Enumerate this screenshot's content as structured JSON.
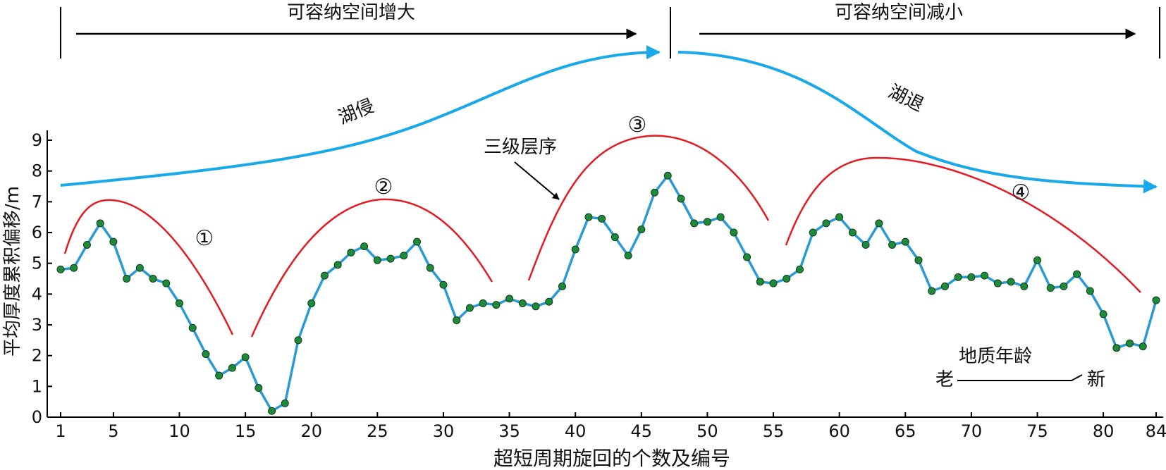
{
  "chart_data": {
    "type": "line",
    "xlabel": "超短周期旋回的个数及编号",
    "ylabel": "平均厚度累积偏移/m",
    "xlim": [
      1,
      84
    ],
    "ylim": [
      0,
      9
    ],
    "x_ticks": [
      1,
      5,
      10,
      15,
      20,
      25,
      30,
      35,
      40,
      45,
      50,
      55,
      60,
      65,
      70,
      75,
      80,
      84
    ],
    "y_ticks": [
      0,
      1,
      2,
      3,
      4,
      5,
      6,
      7,
      8,
      9
    ],
    "colors": {
      "line": "#2a9ad6",
      "marker": "#1f8a3a",
      "curve": "#e31b23",
      "trend": "#1aa9e8",
      "axis": "#000000"
    },
    "series": [
      {
        "x": [
          1,
          2,
          3,
          4,
          5,
          6,
          7,
          8,
          9,
          10,
          11,
          12,
          13,
          14,
          15,
          16,
          17,
          18,
          19,
          20,
          21,
          22,
          23,
          24,
          25,
          26,
          27,
          28,
          29,
          30,
          31,
          32,
          33,
          34,
          35,
          36,
          37,
          38,
          39,
          40,
          41,
          42,
          43,
          44,
          45,
          46,
          47,
          48,
          49,
          50,
          51,
          52,
          53,
          54,
          55,
          56,
          57,
          58,
          59,
          60,
          61,
          62,
          63,
          64,
          65,
          66,
          67,
          68,
          69,
          70,
          71,
          72,
          73,
          74,
          75,
          76,
          77,
          78,
          79,
          80,
          81,
          82,
          83,
          84
        ],
        "values": [
          4.8,
          4.85,
          5.6,
          6.3,
          5.7,
          4.5,
          4.85,
          4.5,
          4.35,
          3.7,
          2.9,
          2.05,
          1.35,
          1.6,
          1.95,
          0.95,
          0.2,
          0.45,
          2.5,
          3.7,
          4.6,
          4.95,
          5.35,
          5.55,
          5.1,
          5.15,
          5.25,
          5.7,
          4.85,
          4.3,
          3.15,
          3.55,
          3.7,
          3.65,
          3.85,
          3.7,
          3.6,
          3.75,
          4.25,
          5.45,
          6.5,
          6.45,
          5.85,
          5.25,
          6.1,
          7.3,
          7.85,
          7.1,
          6.3,
          6.35,
          6.5,
          6.0,
          5.2,
          4.4,
          4.35,
          4.5,
          4.8,
          6.0,
          6.3,
          6.5,
          6.0,
          5.6,
          6.3,
          5.6,
          5.7,
          5.1,
          4.1,
          4.25,
          4.55,
          4.55,
          4.6,
          4.35,
          4.4,
          4.25,
          5.1,
          4.2,
          4.25,
          4.65,
          4.1,
          3.35,
          2.25,
          2.4,
          2.3,
          3.8
        ]
      }
    ],
    "annotations": {
      "top_left": "可容纳空间增大",
      "top_right": "可容纳空间减小",
      "transgression": "湖侵",
      "regression": "湖退",
      "sequence_label": "三级层序",
      "cycle_1": "①",
      "cycle_2": "②",
      "cycle_3": "③",
      "cycle_4": "④",
      "age_title": "地质年龄",
      "age_old": "老",
      "age_new": "新"
    }
  }
}
